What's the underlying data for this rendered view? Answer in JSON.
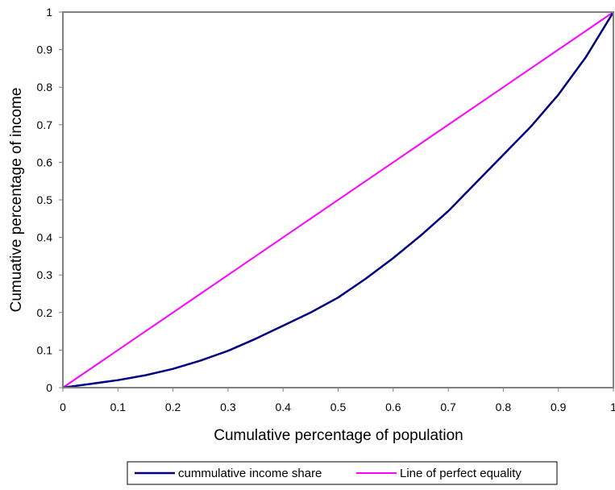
{
  "chart_data": {
    "type": "line",
    "title": "",
    "xlabel": "Cumulative percentage of population",
    "ylabel": "Cumuative percentage of income",
    "xlim": [
      0,
      1
    ],
    "ylim": [
      0,
      1
    ],
    "x_ticks": [
      "0",
      "0.1",
      "0.2",
      "0.3",
      "0.4",
      "0.5",
      "0.6",
      "0.7",
      "0.8",
      "0.9",
      "1"
    ],
    "y_ticks": [
      "0",
      "0.1",
      "0.2",
      "0.3",
      "0.4",
      "0.5",
      "0.6",
      "0.7",
      "0.8",
      "0.9",
      "1"
    ],
    "grid": false,
    "legend_position": "bottom",
    "series": [
      {
        "name": "cummulative income share",
        "color": "#000080",
        "x": [
          0,
          0.05,
          0.1,
          0.15,
          0.2,
          0.25,
          0.3,
          0.35,
          0.4,
          0.45,
          0.5,
          0.55,
          0.6,
          0.65,
          0.7,
          0.75,
          0.8,
          0.85,
          0.9,
          0.95,
          1
        ],
        "y": [
          0,
          0.01,
          0.02,
          0.033,
          0.05,
          0.072,
          0.098,
          0.13,
          0.165,
          0.2,
          0.24,
          0.29,
          0.345,
          0.405,
          0.47,
          0.545,
          0.62,
          0.695,
          0.78,
          0.88,
          1
        ]
      },
      {
        "name": "Line of perfect equality",
        "color": "#FF00FF",
        "x": [
          0,
          1
        ],
        "y": [
          0,
          1
        ]
      }
    ]
  }
}
